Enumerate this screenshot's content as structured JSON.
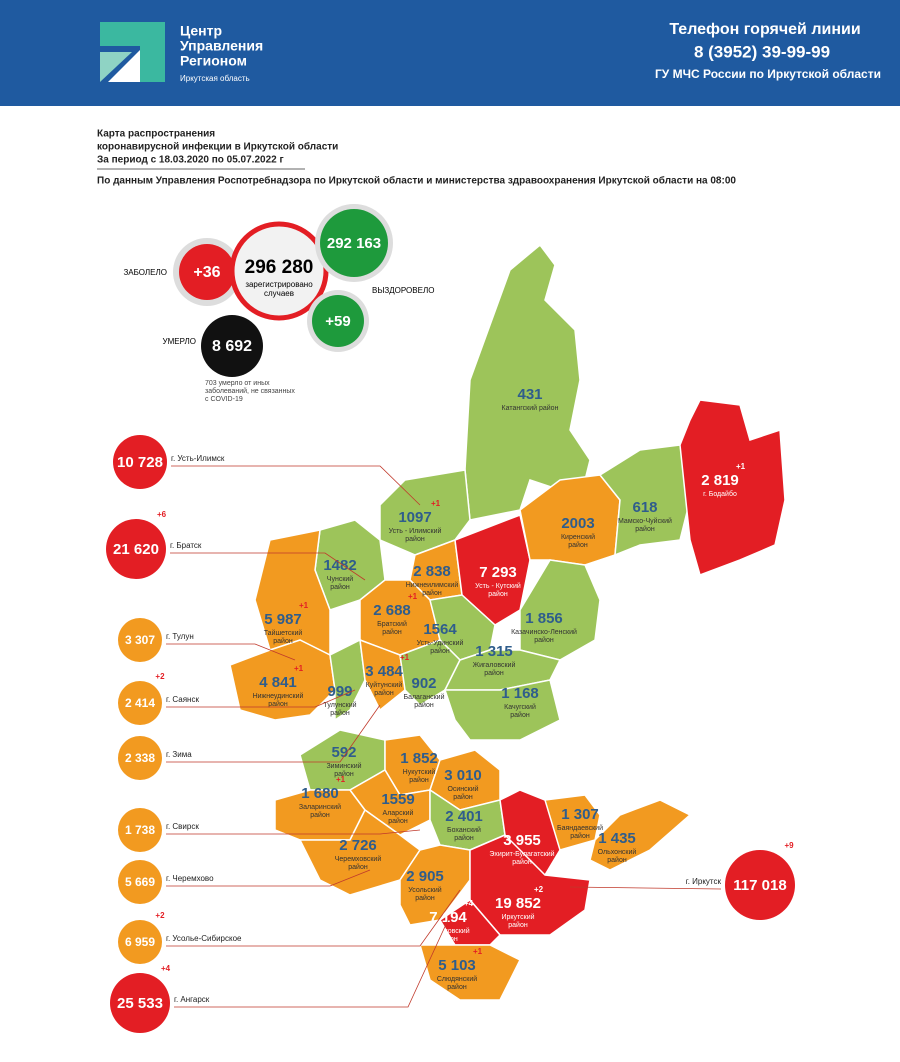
{
  "header": {
    "logo_lines": [
      "Центр",
      "Управления",
      "Регионом"
    ],
    "logo_region": "Иркутская область",
    "hotline_title": "Телефон горячей линии",
    "hotline_phone": "8 (3952) 39-99-99",
    "hotline_org": "ГУ МЧС России по Иркутской области"
  },
  "title": {
    "lines": [
      "Карта распространения",
      "коронавирусной инфекции в Иркутской области",
      "За период с 18.03.2020 по 05.07.2022 г"
    ],
    "source": "По данным Управления Роспотребнадзора по Иркутской области и министерства здравоохранения Иркутской области на 08:00"
  },
  "summary": {
    "sick_label": "ЗАБОЛЕЛО",
    "sick_new": "+36",
    "total": "296 280",
    "total_caption": [
      "зарегистрировано",
      "случаев"
    ],
    "recovered": "292 163",
    "recovered_label": "ВЫЗДОРОВЕЛО",
    "recovered_new": "+59",
    "died_label": "УМЕРЛО",
    "died": "8 692",
    "died_note": [
      "703 умерло от иных",
      "заболеваний, не связанных",
      "с COVID-19"
    ]
  },
  "cities": [
    {
      "value": "10 728",
      "name": "г. Усть-Илимск"
    },
    {
      "value": "21 620",
      "name": "г. Братск",
      "new": "+6"
    },
    {
      "value": "3 307",
      "name": "г. Тулун"
    },
    {
      "value": "2 414",
      "name": "г. Саянск",
      "new": "+2"
    },
    {
      "value": "2 338",
      "name": "г. Зима"
    },
    {
      "value": "1 738",
      "name": "г. Свирск"
    },
    {
      "value": "5 669",
      "name": "г. Черемхово"
    },
    {
      "value": "6 959",
      "name": "г. Усолье-Сибирское",
      "new": "+2"
    },
    {
      "value": "25 533",
      "name": "г. Ангарск",
      "new": "+4"
    },
    {
      "value": "117 018",
      "name": "г. Иркутск",
      "new": "+9"
    }
  ],
  "regions": [
    {
      "value": "431",
      "name": [
        "Катангский район"
      ]
    },
    {
      "value": "1097",
      "name": [
        "Усть - Илимский",
        "район"
      ],
      "new": "+1"
    },
    {
      "value": "2 838",
      "name": [
        "Нижнеилимский",
        "район"
      ]
    },
    {
      "value": "7 293",
      "name": [
        "Усть - Кутский",
        "район"
      ]
    },
    {
      "value": "2003",
      "name": [
        "Киренский",
        "район"
      ]
    },
    {
      "value": "618",
      "name": [
        "Мамско-Чуйский",
        "район"
      ]
    },
    {
      "value": "2 819",
      "name": [
        "г. Бодайбо"
      ],
      "new": "+1"
    },
    {
      "value": "1482",
      "name": [
        "Чунский",
        "район"
      ]
    },
    {
      "value": "5 987",
      "name": [
        "Тайшетский",
        "район"
      ],
      "new": "+1"
    },
    {
      "value": "2 688",
      "name": [
        "Братский",
        "район"
      ],
      "new": "+1"
    },
    {
      "value": "1 856",
      "name": [
        "Казачинско-Ленский",
        "район"
      ]
    },
    {
      "value": "1564",
      "name": [
        "Усть-Удинский",
        "район"
      ]
    },
    {
      "value": "4 841",
      "name": [
        "Нижнеудинский",
        "район"
      ],
      "new": "+1"
    },
    {
      "value": "999",
      "name": [
        "Тулунский",
        "район"
      ]
    },
    {
      "value": "3 484",
      "name": [
        "Куйтунский",
        "район"
      ],
      "new": "+1"
    },
    {
      "value": "902",
      "name": [
        "Балаганский",
        "район"
      ]
    },
    {
      "value": "1 315",
      "name": [
        "Жигаловский",
        "район"
      ]
    },
    {
      "value": "1 168",
      "name": [
        "Качугский",
        "район"
      ]
    },
    {
      "value": "592",
      "name": [
        "Зиминский",
        "район"
      ]
    },
    {
      "value": "1 852",
      "name": [
        "Нукутский",
        "район"
      ]
    },
    {
      "value": "3 010",
      "name": [
        "Осинский",
        "район"
      ]
    },
    {
      "value": "1 680",
      "name": [
        "Заларинский",
        "район"
      ],
      "new": "+1"
    },
    {
      "value": "1559",
      "name": [
        "Аларский",
        "район"
      ]
    },
    {
      "value": "2 401",
      "name": [
        "Боханский",
        "район"
      ]
    },
    {
      "value": "1 307",
      "name": [
        "Баяндаевский",
        "район"
      ]
    },
    {
      "value": "1 435",
      "name": [
        "Ольхонский",
        "район"
      ]
    },
    {
      "value": "3 955",
      "name": [
        "Эхирит-Булагатский",
        "район"
      ]
    },
    {
      "value": "2 726",
      "name": [
        "Черемховский",
        "район"
      ]
    },
    {
      "value": "2 905",
      "name": [
        "Усольский",
        "район"
      ]
    },
    {
      "value": "19 852",
      "name": [
        "Иркутский",
        "район"
      ],
      "new": "+2"
    },
    {
      "value": "7 194",
      "name": [
        "Шелеховский",
        "район"
      ],
      "new": "+4"
    },
    {
      "value": "5 103",
      "name": [
        "Слюдянский",
        "район"
      ],
      "new": "+1"
    }
  ]
}
